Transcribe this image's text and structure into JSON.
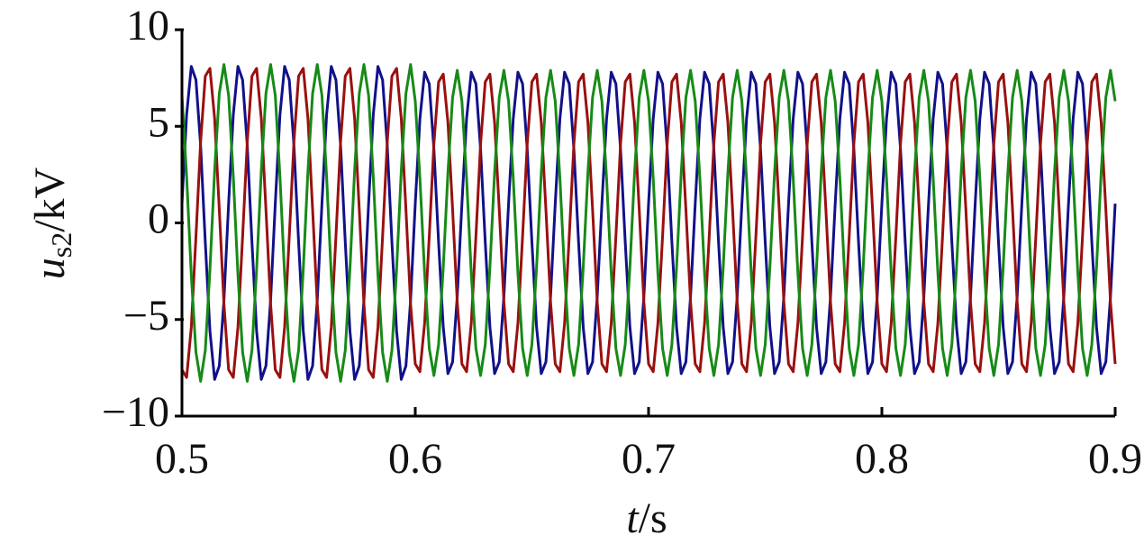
{
  "chart_data": {
    "type": "line",
    "xlabel": {
      "symbol": "t",
      "unit": "/s"
    },
    "ylabel": {
      "symbol": "u",
      "subscript": "s2",
      "unit": "/kV"
    },
    "xlim": [
      0.5,
      0.9
    ],
    "xticks": [
      0.5,
      0.6,
      0.7,
      0.8,
      0.9
    ],
    "ylim": [
      -10,
      10
    ],
    "yticks": [
      {
        "value": -10,
        "label": "−10"
      },
      {
        "value": -5,
        "label": "−5"
      },
      0,
      5,
      10
    ],
    "x": [
      0.5,
      0.502,
      0.504,
      0.506,
      0.508,
      0.51,
      0.512,
      0.514,
      0.516,
      0.518,
      0.52,
      0.522,
      0.524,
      0.526,
      0.528,
      0.53,
      0.532,
      0.534,
      0.536,
      0.538,
      0.54,
      0.542,
      0.544,
      0.546,
      0.548,
      0.55,
      0.552,
      0.554,
      0.556,
      0.558,
      0.56,
      0.562,
      0.564,
      0.566,
      0.568,
      0.57,
      0.572,
      0.574,
      0.576,
      0.578,
      0.58,
      0.582,
      0.584,
      0.586,
      0.588,
      0.59,
      0.592,
      0.594,
      0.596,
      0.598,
      0.6,
      0.602,
      0.604,
      0.606,
      0.608,
      0.61,
      0.612,
      0.614,
      0.616,
      0.618,
      0.62,
      0.622,
      0.624,
      0.626,
      0.628,
      0.63,
      0.632,
      0.634,
      0.636,
      0.638,
      0.64,
      0.642,
      0.644,
      0.646,
      0.648,
      0.65,
      0.652,
      0.654,
      0.656,
      0.658,
      0.66,
      0.662,
      0.664,
      0.666,
      0.668,
      0.67,
      0.672,
      0.674,
      0.676,
      0.678,
      0.68,
      0.682,
      0.684,
      0.686,
      0.688,
      0.69,
      0.692,
      0.694,
      0.696,
      0.698,
      0.7,
      0.702,
      0.704,
      0.706,
      0.708,
      0.71,
      0.712,
      0.714,
      0.716,
      0.718,
      0.72,
      0.722,
      0.724,
      0.726,
      0.728,
      0.73,
      0.732,
      0.734,
      0.736,
      0.738,
      0.74,
      0.742,
      0.744,
      0.746,
      0.748,
      0.75,
      0.752,
      0.754,
      0.756,
      0.758,
      0.76,
      0.762,
      0.764,
      0.766,
      0.768,
      0.77,
      0.772,
      0.774,
      0.776,
      0.778,
      0.78,
      0.782,
      0.784,
      0.786,
      0.788,
      0.79,
      0.792,
      0.794,
      0.796,
      0.798,
      0.8,
      0.802,
      0.804,
      0.806,
      0.808,
      0.81,
      0.812,
      0.814,
      0.816,
      0.818,
      0.82,
      0.822,
      0.824,
      0.826,
      0.828,
      0.83,
      0.832,
      0.834,
      0.836,
      0.838,
      0.84,
      0.842,
      0.844,
      0.846,
      0.848,
      0.85,
      0.852,
      0.854,
      0.856,
      0.858,
      0.86,
      0.862,
      0.864,
      0.866,
      0.868,
      0.87,
      0.872,
      0.874,
      0.876,
      0.878,
      0.88,
      0.882,
      0.884,
      0.886,
      0.888,
      0.89,
      0.892,
      0.894,
      0.896,
      0.898,
      0.9
    ],
    "series": [
      {
        "color": "#11118a",
        "values": [
          1,
          5.6,
          8.1,
          7.4,
          4.0,
          -1,
          -5.6,
          -8.1,
          -7.4,
          -4.0,
          1,
          5.6,
          8.1,
          7.4,
          4.0,
          -1,
          -5.6,
          -8.1,
          -7.4,
          -4.0,
          1,
          5.6,
          8.1,
          7.4,
          4.0,
          -1,
          -5.6,
          -8.1,
          -7.4,
          -4.0,
          1,
          5.6,
          8.1,
          7.4,
          4.0,
          -1,
          -5.6,
          -8.1,
          -7.4,
          -4.0,
          1,
          5.6,
          8.1,
          7.4,
          4.0,
          -1,
          -5.6,
          -8.1,
          -7.4,
          -4.0,
          1,
          5.4,
          7.8,
          7.2,
          3.8,
          -1,
          -5.4,
          -7.8,
          -7.2,
          -3.8,
          1,
          5.4,
          7.8,
          7.2,
          3.8,
          -1,
          -5.4,
          -7.8,
          -7.2,
          -3.8,
          1,
          5.4,
          7.8,
          7.2,
          3.8,
          -1,
          -5.4,
          -7.8,
          -7.2,
          -3.8,
          1,
          5.4,
          7.8,
          7.2,
          3.8,
          -1,
          -5.4,
          -7.8,
          -7.2,
          -3.8,
          1,
          5.4,
          7.8,
          7.2,
          3.8,
          -1,
          -5.4,
          -7.8,
          -7.2,
          -3.8,
          1,
          5.4,
          7.8,
          7.2,
          3.8,
          -1,
          -5.4,
          -7.8,
          -7.2,
          -3.8,
          1,
          5.4,
          7.8,
          7.2,
          3.8,
          -1,
          -5.4,
          -7.8,
          -7.2,
          -3.8,
          1,
          5.4,
          7.8,
          7.2,
          3.8,
          -1,
          -5.4,
          -7.8,
          -7.2,
          -3.8,
          1,
          5.4,
          7.8,
          7.2,
          3.8,
          -1,
          -5.4,
          -7.8,
          -7.2,
          -3.8,
          1,
          5.4,
          7.8,
          7.2,
          3.8,
          -1,
          -5.4,
          -7.8,
          -7.2,
          -3.8,
          1,
          5.4,
          7.8,
          7.2,
          3.8,
          -1,
          -5.4,
          -7.8,
          -7.2,
          -3.8,
          1,
          5.4,
          7.8,
          7.2,
          3.8,
          -1,
          -5.4,
          -7.8,
          -7.2,
          -3.8,
          1,
          5.4,
          7.8,
          7.2,
          3.8,
          -1,
          -5.4,
          -7.8,
          -7.2,
          -3.8,
          1,
          5.4,
          7.8,
          7.2,
          3.8,
          -1,
          -5.4,
          -7.8,
          -7.2,
          -3.8,
          1,
          5.4,
          7.8,
          7.2,
          3.8,
          -1,
          -5.4,
          -7.8,
          -7.2,
          -3.8,
          1
        ]
      },
      {
        "color": "#9a1010",
        "values": [
          -7.6,
          -8.0,
          -5.4,
          -0.7,
          4.2,
          7.6,
          8.0,
          5.4,
          0.7,
          -4.2,
          -7.6,
          -8.0,
          -5.4,
          -0.7,
          4.2,
          7.6,
          8.0,
          5.4,
          0.7,
          -4.2,
          -7.6,
          -8.0,
          -5.4,
          -0.7,
          4.2,
          7.6,
          8.0,
          5.4,
          0.7,
          -4.2,
          -7.6,
          -8.0,
          -5.4,
          -0.7,
          4.2,
          7.6,
          8.0,
          5.4,
          0.7,
          -4.2,
          -7.6,
          -8.0,
          -5.4,
          -0.7,
          4.2,
          7.6,
          8.0,
          5.4,
          0.7,
          -4.2,
          -7.3,
          -7.7,
          -5.2,
          -0.7,
          4.1,
          7.3,
          7.7,
          5.2,
          0.7,
          -4.1,
          -7.3,
          -7.7,
          -5.2,
          -0.7,
          4.1,
          7.3,
          7.7,
          5.2,
          0.7,
          -4.1,
          -7.3,
          -7.7,
          -5.2,
          -0.7,
          4.1,
          7.3,
          7.7,
          5.2,
          0.7,
          -4.1,
          -7.3,
          -7.7,
          -5.2,
          -0.7,
          4.1,
          7.3,
          7.7,
          5.2,
          0.7,
          -4.1,
          -7.3,
          -7.7,
          -5.2,
          -0.7,
          4.1,
          7.3,
          7.7,
          5.2,
          0.7,
          -4.1,
          -7.3,
          -7.7,
          -5.2,
          -0.7,
          4.1,
          7.3,
          7.7,
          5.2,
          0.7,
          -4.1,
          -7.3,
          -7.7,
          -5.2,
          -0.7,
          4.1,
          7.3,
          7.7,
          5.2,
          0.7,
          -4.1,
          -7.3,
          -7.7,
          -5.2,
          -0.7,
          4.1,
          7.3,
          7.7,
          5.2,
          0.7,
          -4.1,
          -7.3,
          -7.7,
          -5.2,
          -0.7,
          4.1,
          7.3,
          7.7,
          5.2,
          0.7,
          -4.1,
          -7.3,
          -7.7,
          -5.2,
          -0.7,
          4.1,
          7.3,
          7.7,
          5.2,
          0.7,
          -4.1,
          -7.3,
          -7.7,
          -5.2,
          -0.7,
          4.1,
          7.3,
          7.7,
          5.2,
          0.7,
          -4.1,
          -7.3,
          -7.7,
          -5.2,
          -0.7,
          4.1,
          7.3,
          7.7,
          5.2,
          0.7,
          -4.1,
          -7.3,
          -7.7,
          -5.2,
          -0.7,
          4.1,
          7.3,
          7.7,
          5.2,
          0.7,
          -4.1,
          -7.3,
          -7.7,
          -5.2,
          -0.7,
          4.1,
          7.3,
          7.7,
          5.2,
          0.7,
          -4.1,
          -7.3,
          -7.7,
          -5.2,
          -0.7,
          4.1,
          7.3,
          7.7,
          5.2,
          0.7,
          -4.1,
          -7.3
        ]
      },
      {
        "color": "#178a17",
        "values": [
          6.6,
          2.4,
          -2.7,
          -6.7,
          -8.2,
          -6.6,
          -2.4,
          2.7,
          6.7,
          8.2,
          6.6,
          2.4,
          -2.7,
          -6.7,
          -8.2,
          -6.6,
          -2.4,
          2.7,
          6.7,
          8.2,
          6.6,
          2.4,
          -2.7,
          -6.7,
          -8.2,
          -6.6,
          -2.4,
          2.7,
          6.7,
          8.2,
          6.6,
          2.4,
          -2.7,
          -6.7,
          -8.2,
          -6.6,
          -2.4,
          2.7,
          6.7,
          8.2,
          6.6,
          2.4,
          -2.7,
          -6.7,
          -8.2,
          -6.6,
          -2.4,
          2.7,
          6.7,
          8.2,
          6.3,
          2.3,
          -2.6,
          -6.5,
          -7.9,
          -6.3,
          -2.3,
          2.6,
          6.5,
          7.9,
          6.3,
          2.3,
          -2.6,
          -6.5,
          -7.9,
          -6.3,
          -2.3,
          2.6,
          6.5,
          7.9,
          6.3,
          2.3,
          -2.6,
          -6.5,
          -7.9,
          -6.3,
          -2.3,
          2.6,
          6.5,
          7.9,
          6.3,
          2.3,
          -2.6,
          -6.5,
          -7.9,
          -6.3,
          -2.3,
          2.6,
          6.5,
          7.9,
          6.3,
          2.3,
          -2.6,
          -6.5,
          -7.9,
          -6.3,
          -2.3,
          2.6,
          6.5,
          7.9,
          6.3,
          2.3,
          -2.6,
          -6.5,
          -7.9,
          -6.3,
          -2.3,
          2.6,
          6.5,
          7.9,
          6.3,
          2.3,
          -2.6,
          -6.5,
          -7.9,
          -6.3,
          -2.3,
          2.6,
          6.5,
          7.9,
          6.3,
          2.3,
          -2.6,
          -6.5,
          -7.9,
          -6.3,
          -2.3,
          2.6,
          6.5,
          7.9,
          6.3,
          2.3,
          -2.6,
          -6.5,
          -7.9,
          -6.3,
          -2.3,
          2.6,
          6.5,
          7.9,
          6.3,
          2.3,
          -2.6,
          -6.5,
          -7.9,
          -6.3,
          -2.3,
          2.6,
          6.5,
          7.9,
          6.3,
          2.3,
          -2.6,
          -6.5,
          -7.9,
          -6.3,
          -2.3,
          2.6,
          6.5,
          7.9,
          6.3,
          2.3,
          -2.6,
          -6.5,
          -7.9,
          -6.3,
          -2.3,
          2.6,
          6.5,
          7.9,
          6.3,
          2.3,
          -2.6,
          -6.5,
          -7.9,
          -6.3,
          -2.3,
          2.6,
          6.5,
          7.9,
          6.3,
          2.3,
          -2.6,
          -6.5,
          -7.9,
          -6.3,
          -2.3,
          2.6,
          6.5,
          7.9,
          6.3,
          2.3,
          -2.6,
          -6.5,
          -7.9,
          -6.3,
          -2.3,
          2.6,
          6.5,
          7.9,
          6.3
        ]
      }
    ]
  }
}
